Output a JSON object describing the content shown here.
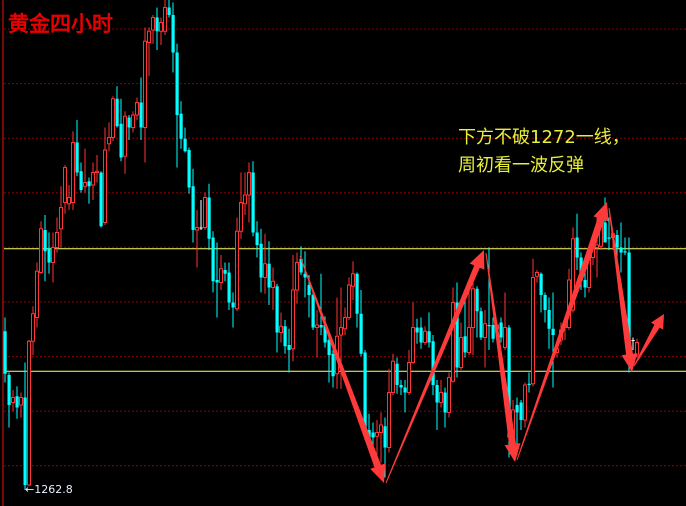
{
  "title": "黄金四小时",
  "annotation": {
    "line1": "下方不破1272一线，",
    "line2": "周初看一波反弹"
  },
  "colors": {
    "background": "#000000",
    "up": "#ff3333",
    "down": "#00ffff",
    "doji": "#ffffff",
    "grid": "#8b0000",
    "level_line": "#ffff66",
    "arrow": "#ff3a3a",
    "title": "#e80000",
    "annotation": "#e8f03a"
  },
  "chart_data": {
    "type": "candlestick",
    "timeframe_label": "四小时",
    "low_marker": {
      "label": "1262.8",
      "value": 1262.8,
      "arrow": "←"
    },
    "horizontal_levels": [
      1282.1,
      1272.3
    ],
    "grid": true,
    "candle_format": [
      "open",
      "high",
      "low",
      "close"
    ],
    "candles": [
      [
        1275.5,
        1276.6,
        1271.4,
        1272.1
      ],
      [
        1272.0,
        1272.2,
        1267.8,
        1269.6
      ],
      [
        1269.8,
        1270.8,
        1269.1,
        1270.2
      ],
      [
        1270.3,
        1271.1,
        1268.5,
        1269.4
      ],
      [
        1269.6,
        1270.6,
        1268.6,
        1270.2
      ],
      [
        1270.2,
        1273.0,
        1262.8,
        1263.2
      ],
      [
        1263.2,
        1274.8,
        1263.1,
        1274.7
      ],
      [
        1274.7,
        1277.5,
        1273.6,
        1276.9
      ],
      [
        1276.6,
        1281.0,
        1275.8,
        1280.3
      ],
      [
        1280.2,
        1284.3,
        1280.1,
        1283.7
      ],
      [
        1283.6,
        1284.8,
        1279.5,
        1281.9
      ],
      [
        1282.1,
        1283.4,
        1280.1,
        1281.0
      ],
      [
        1281.0,
        1283.4,
        1279.4,
        1282.2
      ],
      [
        1282.2,
        1284.6,
        1281.8,
        1283.4
      ],
      [
        1283.7,
        1287.1,
        1282.2,
        1285.4
      ],
      [
        1285.8,
        1288.8,
        1284.9,
        1288.6
      ],
      [
        1285.7,
        1287.2,
        1285.2,
        1286.2
      ],
      [
        1285.8,
        1291.5,
        1285.2,
        1290.6
      ],
      [
        1290.6,
        1292.4,
        1287.9,
        1288.2
      ],
      [
        1288.3,
        1289.0,
        1286.6,
        1286.8
      ],
      [
        1287.1,
        1290.1,
        1286.6,
        1287.4
      ],
      [
        1287.5,
        1287.8,
        1285.7,
        1287.1
      ],
      [
        1287.2,
        1289.0,
        1286.0,
        1288.2
      ],
      [
        1288.2,
        1289.6,
        1287.4,
        1288.3
      ],
      [
        1288.2,
        1288.3,
        1283.8,
        1283.9
      ],
      [
        1284.2,
        1291.8,
        1284.0,
        1290.0
      ],
      [
        1290.5,
        1292.2,
        1289.9,
        1291.0
      ],
      [
        1291.0,
        1294.3,
        1290.7,
        1294.1
      ],
      [
        1294.1,
        1295.1,
        1291.8,
        1291.9
      ],
      [
        1292.1,
        1294.1,
        1289.1,
        1289.4
      ],
      [
        1289.5,
        1293.1,
        1288.1,
        1292.7
      ],
      [
        1292.6,
        1292.8,
        1290.8,
        1291.8
      ],
      [
        1291.8,
        1293.1,
        1291.4,
        1292.8
      ],
      [
        1292.8,
        1294.2,
        1292.4,
        1293.8
      ],
      [
        1293.8,
        1295.8,
        1290.8,
        1291.8
      ],
      [
        1291.8,
        1299.8,
        1289.0,
        1298.7
      ],
      [
        1298.6,
        1299.8,
        1295.9,
        1299.5
      ],
      [
        1299.6,
        1300.8,
        1298.5,
        1300.6
      ],
      [
        1300.6,
        1301.4,
        1298.0,
        1299.5
      ],
      [
        1299.5,
        1300.6,
        1298.4,
        1300.2
      ],
      [
        1299.5,
        1302.0,
        1299.2,
        1301.4
      ],
      [
        1301.4,
        1302.0,
        1300.6,
        1300.8
      ],
      [
        1300.8,
        1301.8,
        1296.2,
        1297.8
      ],
      [
        1297.8,
        1298.5,
        1288.6,
        1292.8
      ],
      [
        1292.9,
        1293.9,
        1290.1,
        1290.9
      ],
      [
        1290.9,
        1291.8,
        1289.8,
        1289.9
      ],
      [
        1290.0,
        1290.2,
        1286.5,
        1287.0
      ],
      [
        1287.1,
        1288.5,
        1282.6,
        1283.6
      ],
      [
        1283.6,
        1285.2,
        1280.6,
        1283.8
      ],
      [
        1283.8,
        1286.0,
        1283.6,
        1283.8
      ],
      [
        1283.8,
        1286.6,
        1283.6,
        1286.2
      ],
      [
        1286.2,
        1287.3,
        1282.0,
        1282.9
      ],
      [
        1283.0,
        1283.5,
        1278.6,
        1279.5
      ],
      [
        1279.6,
        1282.6,
        1276.6,
        1279.4
      ],
      [
        1279.4,
        1281.6,
        1278.8,
        1280.5
      ],
      [
        1280.4,
        1281.0,
        1279.5,
        1280.1
      ],
      [
        1280.2,
        1281.0,
        1277.2,
        1277.8
      ],
      [
        1277.8,
        1278.6,
        1275.8,
        1277.4
      ],
      [
        1277.3,
        1284.6,
        1277.1,
        1283.5
      ],
      [
        1283.5,
        1288.2,
        1282.9,
        1285.8
      ],
      [
        1285.7,
        1288.2,
        1284.8,
        1286.4
      ],
      [
        1286.4,
        1289.0,
        1284.2,
        1288.2
      ],
      [
        1288.2,
        1289.1,
        1283.1,
        1283.4
      ],
      [
        1283.4,
        1284.3,
        1281.4,
        1282.4
      ],
      [
        1282.5,
        1283.7,
        1278.6,
        1279.8
      ],
      [
        1279.8,
        1283.3,
        1278.5,
        1280.9
      ],
      [
        1280.9,
        1282.7,
        1277.6,
        1279.0
      ],
      [
        1279.0,
        1280.6,
        1277.2,
        1279.5
      ],
      [
        1279.1,
        1279.3,
        1273.8,
        1275.4
      ],
      [
        1275.4,
        1277.0,
        1274.6,
        1275.9
      ],
      [
        1275.9,
        1276.4,
        1273.7,
        1274.3
      ],
      [
        1274.4,
        1275.7,
        1272.2,
        1274.0
      ],
      [
        1274.1,
        1281.6,
        1273.1,
        1278.8
      ],
      [
        1278.8,
        1281.8,
        1277.7,
        1281.0
      ],
      [
        1281.3,
        1282.3,
        1280.0,
        1280.2
      ],
      [
        1280.1,
        1281.9,
        1278.2,
        1279.8
      ],
      [
        1279.2,
        1280.0,
        1276.6,
        1278.4
      ],
      [
        1278.4,
        1278.6,
        1275.6,
        1275.8
      ],
      [
        1275.8,
        1277.2,
        1273.4,
        1276.0
      ],
      [
        1276.0,
        1280.1,
        1275.2,
        1275.8
      ],
      [
        1276.0,
        1276.7,
        1274.2,
        1274.6
      ],
      [
        1274.8,
        1275.0,
        1271.4,
        1273.6
      ],
      [
        1273.7,
        1274.0,
        1271.0,
        1271.9
      ],
      [
        1272.1,
        1278.2,
        1270.9,
        1275.1
      ],
      [
        1275.2,
        1279.0,
        1270.9,
        1275.8
      ],
      [
        1275.7,
        1277.4,
        1275.2,
        1276.6
      ],
      [
        1276.6,
        1279.8,
        1276.4,
        1279.2
      ],
      [
        1279.1,
        1281.1,
        1278.0,
        1280.1
      ],
      [
        1280.1,
        1280.2,
        1275.8,
        1276.9
      ],
      [
        1276.9,
        1278.8,
        1273.5,
        1273.7
      ],
      [
        1273.8,
        1274.0,
        1266.8,
        1267.6
      ],
      [
        1267.6,
        1268.9,
        1266.6,
        1267.0
      ],
      [
        1267.4,
        1268.2,
        1265.8,
        1267.0
      ],
      [
        1267.1,
        1268.4,
        1264.4,
        1267.4
      ],
      [
        1267.4,
        1269.0,
        1265.0,
        1268.0
      ],
      [
        1267.9,
        1268.6,
        1263.8,
        1266.2
      ],
      [
        1266.2,
        1272.5,
        1265.8,
        1270.6
      ],
      [
        1270.6,
        1273.7,
        1270.4,
        1273.1
      ],
      [
        1272.9,
        1273.4,
        1270.5,
        1271.2
      ],
      [
        1271.2,
        1271.6,
        1270.4,
        1271.0
      ],
      [
        1271.0,
        1271.6,
        1269.0,
        1270.6
      ],
      [
        1270.6,
        1274.0,
        1270.4,
        1273.0
      ],
      [
        1273.0,
        1277.8,
        1272.9,
        1275.8
      ],
      [
        1275.8,
        1276.5,
        1274.5,
        1275.4
      ],
      [
        1275.8,
        1276.6,
        1274.1,
        1274.6
      ],
      [
        1274.6,
        1275.9,
        1274.4,
        1275.5
      ],
      [
        1275.5,
        1277.0,
        1274.2,
        1274.6
      ],
      [
        1274.7,
        1275.2,
        1270.4,
        1271.2
      ],
      [
        1271.2,
        1271.6,
        1267.6,
        1269.8
      ],
      [
        1269.8,
        1271.6,
        1269.4,
        1270.6
      ],
      [
        1270.6,
        1271.0,
        1267.8,
        1269.0
      ],
      [
        1269.0,
        1272.2,
        1268.6,
        1271.8
      ],
      [
        1271.5,
        1279.0,
        1271.4,
        1277.8
      ],
      [
        1277.8,
        1279.4,
        1271.8,
        1272.6
      ],
      [
        1272.6,
        1276.2,
        1272.4,
        1275.0
      ],
      [
        1275.1,
        1278.0,
        1273.4,
        1273.8
      ],
      [
        1273.8,
        1279.4,
        1273.6,
        1275.8
      ],
      [
        1275.8,
        1279.4,
        1273.6,
        1278.9
      ],
      [
        1278.9,
        1279.1,
        1275.0,
        1277.1
      ],
      [
        1277.1,
        1277.4,
        1274.8,
        1275.0
      ],
      [
        1275.0,
        1277.2,
        1272.6,
        1276.1
      ],
      [
        1276.0,
        1282.2,
        1274.0,
        1275.9
      ],
      [
        1276.0,
        1276.6,
        1274.6,
        1274.9
      ],
      [
        1275.7,
        1276.2,
        1275.4,
        1276.0
      ],
      [
        1276.2,
        1276.6,
        1274.6,
        1275.0
      ],
      [
        1274.2,
        1278.6,
        1274.0,
        1275.8
      ],
      [
        1275.8,
        1276.0,
        1265.4,
        1267.0
      ],
      [
        1267.0,
        1270.0,
        1266.6,
        1269.2
      ],
      [
        1269.6,
        1270.2,
        1265.6,
        1269.0
      ],
      [
        1269.8,
        1270.0,
        1267.6,
        1268.4
      ],
      [
        1268.4,
        1271.4,
        1267.8,
        1271.2
      ],
      [
        1271.3,
        1272.2,
        1270.6,
        1271.2
      ],
      [
        1271.3,
        1281.3,
        1271.1,
        1279.8
      ],
      [
        1279.9,
        1280.4,
        1279.4,
        1280.2
      ],
      [
        1280.1,
        1280.2,
        1277.0,
        1278.4
      ],
      [
        1278.4,
        1278.6,
        1276.2,
        1277.2
      ],
      [
        1277.2,
        1278.2,
        1274.1,
        1275.7
      ],
      [
        1275.7,
        1278.6,
        1271.0,
        1275.2
      ],
      [
        1273.8,
        1274.6,
        1273.4,
        1274.1
      ],
      [
        1274.8,
        1276.2,
        1274.4,
        1275.6
      ],
      [
        1275.8,
        1276.6,
        1274.8,
        1276.0
      ],
      [
        1275.8,
        1280.5,
        1275.6,
        1279.6
      ],
      [
        1277.2,
        1283.8,
        1277.0,
        1282.9
      ],
      [
        1283.0,
        1284.9,
        1280.4,
        1281.4
      ],
      [
        1281.4,
        1281.8,
        1278.8,
        1279.6
      ],
      [
        1279.6,
        1280.4,
        1278.2,
        1279.0
      ],
      [
        1279.0,
        1282.0,
        1278.6,
        1281.4
      ],
      [
        1281.4,
        1283.0,
        1280.8,
        1282.2
      ],
      [
        1282.2,
        1284.6,
        1279.8,
        1282.4
      ],
      [
        1282.3,
        1284.6,
        1282.0,
        1284.2
      ],
      [
        1284.2,
        1286.2,
        1282.6,
        1282.6
      ],
      [
        1283.0,
        1284.6,
        1282.0,
        1282.9
      ],
      [
        1283.0,
        1283.4,
        1282.0,
        1283.3
      ],
      [
        1283.2,
        1283.6,
        1280.4,
        1282.2
      ],
      [
        1282.2,
        1284.2,
        1280.2,
        1281.8
      ],
      [
        1281.9,
        1283.0,
        1281.6,
        1281.8
      ],
      [
        1281.8,
        1283.0,
        1272.2,
        1273.4
      ],
      [
        1274.8,
        1275.0,
        1274.0,
        1274.8
      ],
      [
        1273.6,
        1274.9,
        1273.4,
        1274.6
      ]
    ]
  }
}
